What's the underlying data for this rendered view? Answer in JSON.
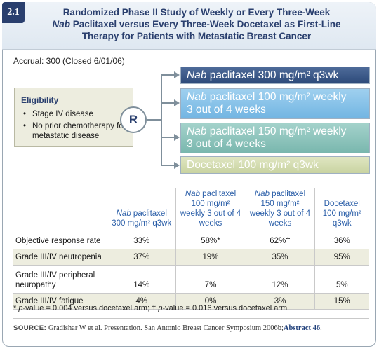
{
  "badge": "2.1",
  "title": {
    "line1": "Randomized Phase II Study of Weekly or Every Three-Week",
    "line2_italic": "Nab",
    "line2_rest": " Paclitaxel versus Every Three-Week Docetaxel as First-Line",
    "line3": "Therapy for Patients with Metastatic Breast Cancer"
  },
  "accrual": "Accrual: 300 (Closed 6/01/06)",
  "eligibility": {
    "title": "Eligibility",
    "items": [
      "Stage IV disease",
      "No prior chemotherapy for metastatic disease"
    ]
  },
  "randomize_label": "R",
  "arms": [
    {
      "italic": "Nab",
      "line1": " paclitaxel 300 mg/m² q3wk",
      "line2": ""
    },
    {
      "italic": "Nab",
      "line1": " paclitaxel 100 mg/m² weekly",
      "line2": "3 out of 4 weeks"
    },
    {
      "italic": "Nab",
      "line1": " paclitaxel 150 mg/m² weekly",
      "line2": "3 out of 4 weeks"
    },
    {
      "italic": "",
      "line1": "Docetaxel 100 mg/m² q3wk",
      "line2": ""
    }
  ],
  "arm_colors": [
    "#34507f",
    "#80bde6",
    "#85bfb6",
    "#d2dbab"
  ],
  "table": {
    "columns": [
      {
        "italic": "Nab",
        "rest": " paclitaxel 300 mg/m² q3wk"
      },
      {
        "italic": "Nab",
        "rest": " paclitaxel 100 mg/m² weekly 3 out of 4 weeks"
      },
      {
        "italic": "Nab",
        "rest": " paclitaxel 150 mg/m² weekly 3 out of 4 weeks"
      },
      {
        "italic": "",
        "rest": "Docetaxel 100 mg/m² q3wk"
      }
    ],
    "rows": [
      {
        "label": "Objective response rate",
        "values": [
          "33%",
          "58%*",
          "62%†",
          "36%"
        ]
      },
      {
        "label": "Grade III/IV neutropenia",
        "values": [
          "37%",
          "19%",
          "35%",
          "95%"
        ]
      },
      {
        "label": "Grade III/IV peripheral neuropathy",
        "values": [
          "14%",
          "7%",
          "12%",
          "5%"
        ]
      },
      {
        "label": "Grade III/IV fatigue",
        "values": [
          "4%",
          "0%",
          "3%",
          "15%"
        ]
      }
    ]
  },
  "footnote": {
    "mark1": "* ",
    "pval1_italic": "p",
    "text1": "-value = 0.004 versus docetaxel arm; ",
    "mark2": "† ",
    "pval2_italic": "p",
    "text2": "-value = 0.016 versus docetaxel arm"
  },
  "source": {
    "label": "SOURCE:",
    "text": " Gradishar W et al. Presentation. San Antonio Breast Cancer Symposium 2006b;",
    "link": "Abstract 46",
    "end": "."
  }
}
